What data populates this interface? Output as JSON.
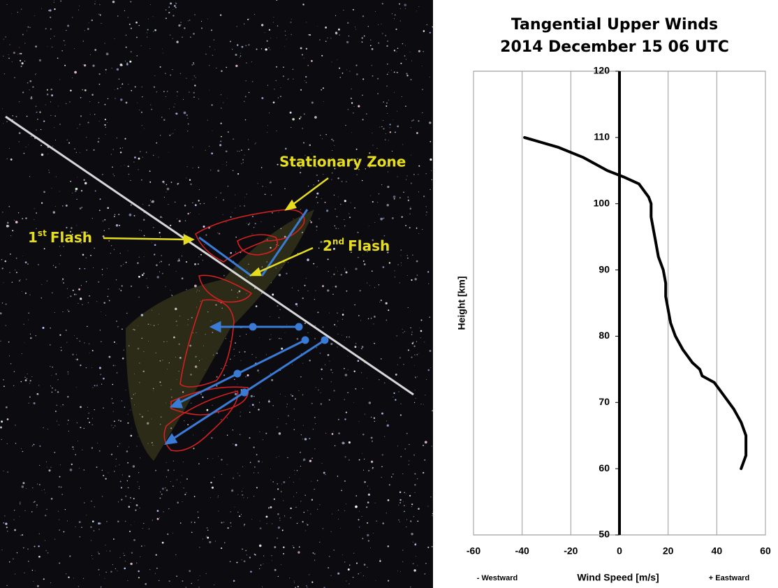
{
  "photo": {
    "labels": [
      {
        "text": "Stationary Zone"
      },
      {
        "number": "1",
        "suffix": "st",
        "text": "Flash"
      },
      {
        "number": "2",
        "suffix": "nd",
        "text": "Flash"
      }
    ]
  },
  "chart_data": {
    "type": "line",
    "title": "Tangential Upper Winds",
    "subtitle": "2014 December 15 06 UTC",
    "x_label": "Wind Speed [m/s]",
    "y_label": "Height [km]",
    "annotations": [
      "- Westward",
      "+ Eastward"
    ],
    "x": [
      50,
      52,
      52,
      50,
      47,
      43,
      39,
      34,
      33,
      30,
      26,
      23,
      21,
      20,
      19,
      19,
      18,
      16,
      15,
      14,
      13,
      13,
      12,
      8,
      2,
      -5,
      -15,
      -25,
      -39
    ],
    "values": [
      60,
      62,
      65,
      67,
      69,
      71,
      73,
      74,
      75,
      76,
      78,
      80,
      82,
      84,
      86,
      88,
      90,
      92,
      94,
      96,
      98,
      100,
      101,
      103,
      104,
      105,
      107,
      108.5,
      110
    ],
    "color": "#000000",
    "xlim": [
      -60,
      60
    ],
    "xticks": [
      -60,
      -40,
      -20,
      0,
      20,
      40,
      60
    ],
    "ylim": [
      50,
      120
    ],
    "yticks": [
      50,
      60,
      70,
      80,
      90,
      100,
      110,
      120
    ],
    "grid": true
  }
}
